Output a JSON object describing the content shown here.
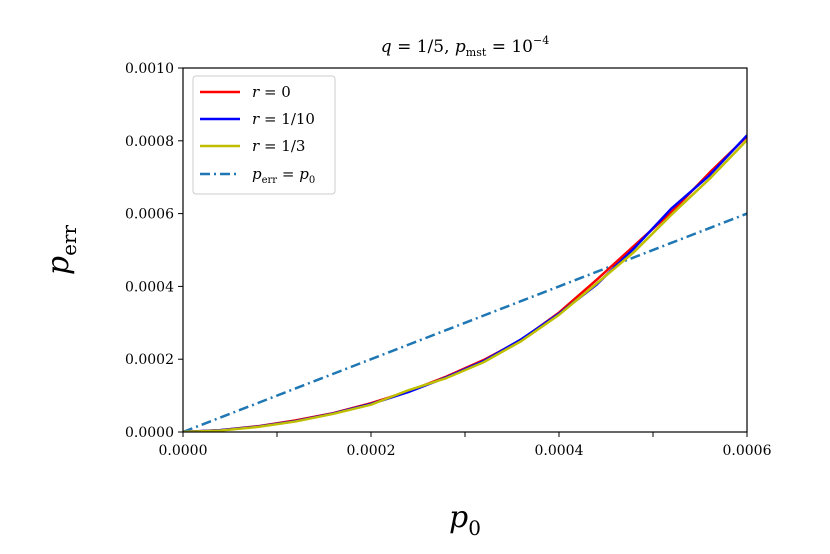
{
  "chart_data": {
    "type": "line",
    "title": {
      "q_sym": "q",
      "q_val": " = 1/5, ",
      "p_sym": "p",
      "p_sub": "mst",
      "p_val": " = 10",
      "p_exp": "−4"
    },
    "xlabel": {
      "sym": "p",
      "sub": "0"
    },
    "ylabel": {
      "sym": "p",
      "sub": "err"
    },
    "xlim": [
      0,
      0.0006
    ],
    "ylim": [
      0,
      0.001
    ],
    "xticks": [
      {
        "value": 0,
        "label": "0.0000"
      },
      {
        "value": 0.0002,
        "label": "0.0002"
      },
      {
        "value": 0.0004,
        "label": "0.0004"
      },
      {
        "value": 0.0006,
        "label": "0.0006"
      }
    ],
    "xminor": [
      0.0001,
      0.0003,
      0.0005
    ],
    "yticks": [
      {
        "value": 0,
        "label": "0.0000"
      },
      {
        "value": 0.0002,
        "label": "0.0002"
      },
      {
        "value": 0.0004,
        "label": "0.0004"
      },
      {
        "value": 0.0006,
        "label": "0.0006"
      },
      {
        "value": 0.0008,
        "label": "0.0008"
      },
      {
        "value": 0.001,
        "label": "0.0010"
      }
    ],
    "grid": false,
    "legend_position": "top-left",
    "x": [
      0,
      4e-05,
      8e-05,
      0.00012,
      0.00016,
      0.0002,
      0.00024,
      0.00028,
      0.00032,
      0.00036,
      0.0004,
      0.00044,
      0.00048,
      0.00052,
      0.00056,
      0.0006
    ],
    "series": [
      {
        "label": {
          "sym": "r",
          "val": " = 0"
        },
        "color": "#ff0000",
        "style": "solid",
        "values": [
          0,
          5e-06,
          1.6e-05,
          3.2e-05,
          5.2e-05,
          7.9e-05,
          0.000112,
          0.000152,
          0.000198,
          0.000253,
          0.000328,
          0.000418,
          0.000512,
          0.000605,
          0.000712,
          0.000812
        ]
      },
      {
        "label": {
          "sym": "r",
          "val": " = 1/10"
        },
        "color": "#0000ff",
        "style": "solid",
        "values": [
          0,
          5e-06,
          1.5e-05,
          3e-05,
          5.1e-05,
          7.7e-05,
          0.00011,
          0.00015,
          0.000195,
          0.000255,
          0.000325,
          0.000405,
          0.000505,
          0.000615,
          0.000705,
          0.000815
        ]
      },
      {
        "label": {
          "sym": "r",
          "val": " = 1/3"
        },
        "color": "#bfbf00",
        "style": "solid",
        "values": [
          0,
          4e-06,
          1.4e-05,
          2.9e-05,
          5e-05,
          7.5e-05,
          0.000115,
          0.000148,
          0.000192,
          0.00025,
          0.000322,
          0.000408,
          0.000495,
          0.000598,
          0.000695,
          0.000802
        ]
      },
      {
        "label": {
          "sym": "p",
          "sub": "err",
          "val": " = ",
          "sym2": "p",
          "sub2": "0"
        },
        "color": "#1f77b4",
        "style": "dashdot",
        "values": [
          0,
          4e-05,
          8e-05,
          0.00012,
          0.00016,
          0.0002,
          0.00024,
          0.00028,
          0.00032,
          0.00036,
          0.0004,
          0.00044,
          0.00048,
          0.00052,
          0.00056,
          0.0006
        ]
      }
    ]
  }
}
